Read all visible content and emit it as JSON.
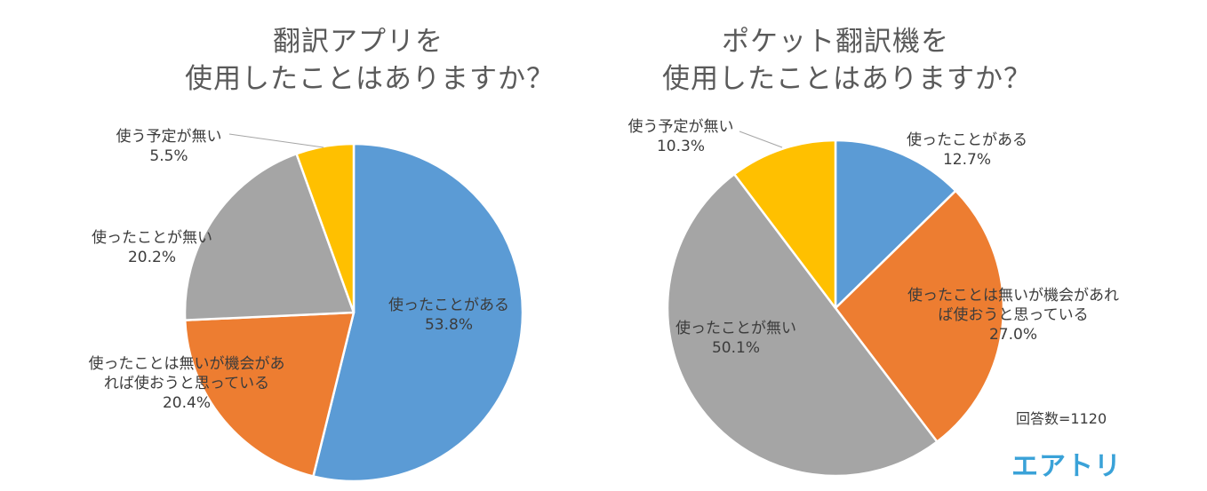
{
  "chart_data": [
    {
      "type": "pie",
      "title_lines": [
        "翻訳アプリを",
        "使用したことはありますか？"
      ],
      "slices": [
        {
          "label_lines": [
            "使ったことがある"
          ],
          "value": 53.8,
          "value_label": "53.8%",
          "color": "#5b9bd5"
        },
        {
          "label_lines": [
            "使ったことは無いが機会があ",
            "れば使おうと思っている"
          ],
          "value": 20.4,
          "value_label": "20.4%",
          "color": "#ed7d31"
        },
        {
          "label_lines": [
            "使ったことが無い"
          ],
          "value": 20.2,
          "value_label": "20.2%",
          "color": "#a5a5a5"
        },
        {
          "label_lines": [
            "使う予定が無い"
          ],
          "value": 5.5,
          "value_label": "5.5%",
          "color": "#ffc000"
        }
      ]
    },
    {
      "type": "pie",
      "title_lines": [
        "ポケット翻訳機を",
        "使用したことはありますか？"
      ],
      "slices": [
        {
          "label_lines": [
            "使ったことがある"
          ],
          "value": 12.7,
          "value_label": "12.7%",
          "color": "#5b9bd5"
        },
        {
          "label_lines": [
            "使ったことは無いが機会があれ",
            "ば使おうと思っている"
          ],
          "value": 27.0,
          "value_label": "27.0%",
          "color": "#ed7d31"
        },
        {
          "label_lines": [
            "使ったことが無い"
          ],
          "value": 50.1,
          "value_label": "50.1%",
          "color": "#a5a5a5"
        },
        {
          "label_lines": [
            "使う予定が無い"
          ],
          "value": 10.3,
          "value_label": "10.3%",
          "color": "#ffc000"
        }
      ]
    }
  ],
  "footer": {
    "respondents": "回答数=1120",
    "logo": "エアトリ"
  }
}
